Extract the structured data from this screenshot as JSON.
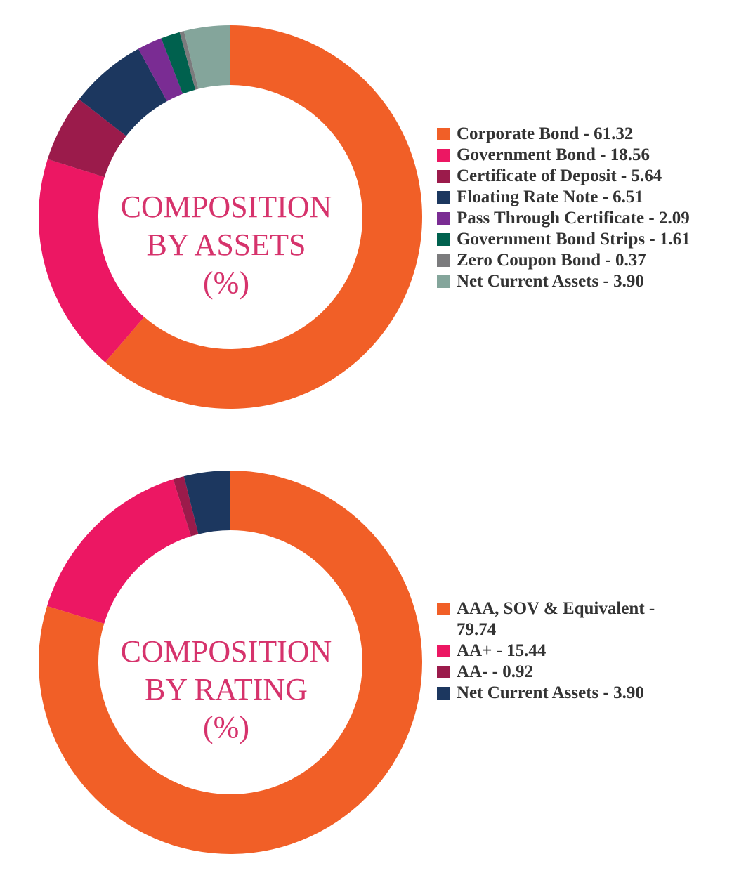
{
  "chart_data": [
    {
      "type": "pie",
      "title_lines": [
        "COMPOSITION",
        "BY ASSETS",
        "(%)"
      ],
      "legend_position": "right",
      "slices": [
        {
          "label": "Corporate Bond - 61.32",
          "value": 61.32,
          "color": "#f15f27"
        },
        {
          "label": "Government Bond - 18.56",
          "value": 18.56,
          "color": "#ec1763"
        },
        {
          "label": "Certificate of Deposit - 5.64",
          "value": 5.64,
          "color": "#9b1b4b"
        },
        {
          "label": "Floating Rate Note - 6.51",
          "value": 6.51,
          "color": "#1c375f"
        },
        {
          "label": "Pass Through Certificate - 2.09",
          "value": 2.09,
          "color": "#7a2c93"
        },
        {
          "label": "Government Bond Strips - 1.61",
          "value": 1.61,
          "color": "#00614e"
        },
        {
          "label": "Zero Coupon Bond - 0.37",
          "value": 0.37,
          "color": "#7b7b7d"
        },
        {
          "label": "Net Current Assets - 3.90",
          "value": 3.9,
          "color": "#84a59b"
        }
      ]
    },
    {
      "type": "pie",
      "title_lines": [
        "COMPOSITION",
        "BY RATING",
        "(%)"
      ],
      "legend_position": "right",
      "slices": [
        {
          "label": "AAA, SOV & Equivalent - 79.74",
          "value": 79.74,
          "color": "#f15f27"
        },
        {
          "label": "AA+ - 15.44",
          "value": 15.44,
          "color": "#ec1763"
        },
        {
          "label": "AA- - 0.92",
          "value": 0.92,
          "color": "#9b1b4b"
        },
        {
          "label": "Net Current Assets - 3.90",
          "value": 3.9,
          "color": "#1c375f"
        }
      ]
    }
  ]
}
